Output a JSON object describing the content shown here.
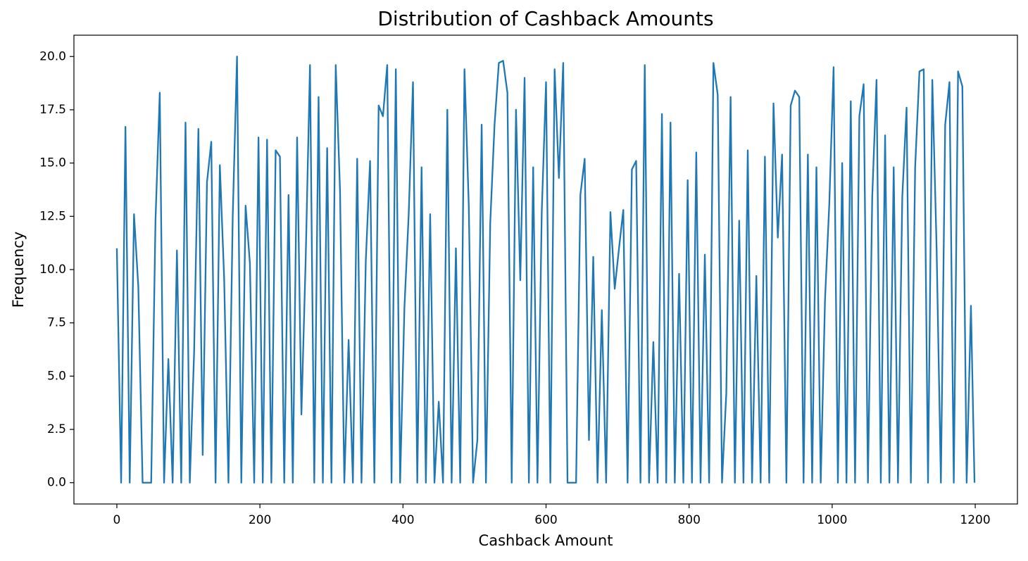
{
  "chart_data": {
    "type": "line",
    "title": "Distribution of Cashback Amounts",
    "x_label": "Cashback Amount",
    "y_label": "Frequency",
    "color": "#1f77b4",
    "xlim": [
      -60,
      1259
    ],
    "ylim": [
      -1,
      21
    ],
    "xticks": [
      0,
      200,
      400,
      600,
      800,
      1000,
      1200
    ],
    "yticks": [
      {
        "value": 0,
        "label": "0.0"
      },
      2.5,
      {
        "value": 5,
        "label": "5.0"
      },
      7.5,
      {
        "value": 10,
        "label": "10.0"
      },
      12.5,
      {
        "value": 15,
        "label": "15.0"
      },
      17.5,
      {
        "value": 20,
        "label": "20.0"
      }
    ],
    "grid": false,
    "x": [
      0,
      6,
      12,
      18,
      24,
      30,
      36,
      42,
      48,
      54,
      60,
      66,
      72,
      78,
      84,
      90,
      96,
      102,
      108,
      114,
      120,
      126,
      132,
      138,
      144,
      150,
      156,
      162,
      168,
      174,
      180,
      186,
      192,
      198,
      204,
      210,
      216,
      222,
      228,
      234,
      240,
      246,
      252,
      258,
      264,
      270,
      276,
      282,
      288,
      294,
      300,
      306,
      312,
      318,
      324,
      330,
      336,
      342,
      348,
      354,
      360,
      366,
      372,
      378,
      384,
      390,
      396,
      402,
      408,
      414,
      420,
      426,
      432,
      438,
      444,
      450,
      456,
      462,
      468,
      474,
      480,
      486,
      492,
      498,
      504,
      510,
      516,
      522,
      528,
      534,
      540,
      546,
      552,
      558,
      564,
      570,
      576,
      582,
      588,
      594,
      600,
      606,
      612,
      618,
      624,
      630,
      636,
      642,
      648,
      654,
      660,
      666,
      672,
      678,
      684,
      690,
      696,
      702,
      708,
      714,
      720,
      726,
      732,
      738,
      744,
      750,
      756,
      762,
      768,
      774,
      780,
      786,
      792,
      798,
      804,
      810,
      816,
      822,
      828,
      834,
      840,
      846,
      852,
      858,
      864,
      870,
      876,
      882,
      888,
      894,
      900,
      906,
      912,
      918,
      924,
      930,
      936,
      942,
      948,
      954,
      960,
      966,
      972,
      978,
      984,
      990,
      996,
      1002,
      1008,
      1014,
      1020,
      1026,
      1032,
      1038,
      1044,
      1050,
      1056,
      1062,
      1068,
      1074,
      1080,
      1086,
      1092,
      1098,
      1104,
      1110,
      1116,
      1122,
      1128,
      1134,
      1140,
      1146,
      1152,
      1158,
      1164,
      1170,
      1176,
      1182,
      1188,
      1194,
      1199
    ],
    "values": [
      11,
      0,
      16.7,
      0,
      12.6,
      9.2,
      0,
      0,
      0,
      12.3,
      18.3,
      0,
      5.8,
      0,
      10.9,
      0,
      16.9,
      0,
      6.1,
      16.6,
      1.3,
      14.1,
      16,
      0,
      14.9,
      9.6,
      0,
      12.5,
      20,
      0,
      13,
      10.3,
      0,
      16.2,
      0,
      16.1,
      0,
      15.6,
      15.3,
      0,
      13.5,
      0,
      16.2,
      3.2,
      10.5,
      19.6,
      0,
      18.1,
      0,
      15.7,
      0,
      19.6,
      13.7,
      0,
      6.7,
      0,
      15.2,
      0,
      10.4,
      15.1,
      0,
      17.7,
      17.2,
      19.6,
      0,
      19.4,
      0,
      8.2,
      12.6,
      18.8,
      0,
      14.8,
      0,
      12.6,
      0,
      3.8,
      0,
      17.5,
      0,
      11,
      0,
      19.4,
      13,
      0,
      2,
      16.8,
      0,
      12.2,
      16.8,
      19.7,
      19.8,
      18.3,
      0,
      17.5,
      9.5,
      19,
      0,
      14.8,
      0,
      12.7,
      18.8,
      0,
      19.4,
      14.3,
      19.7,
      0,
      0,
      0,
      13.5,
      15.2,
      2,
      10.6,
      0,
      8.1,
      0,
      12.7,
      9.1,
      11,
      12.8,
      0,
      14.7,
      15.1,
      0,
      19.6,
      0,
      6.6,
      0,
      17.3,
      0,
      16.9,
      0,
      9.8,
      0,
      14.2,
      0,
      15.5,
      0,
      10.7,
      0,
      19.7,
      18.2,
      0,
      4.2,
      18.1,
      0,
      12.3,
      0,
      15.6,
      0,
      9.7,
      0,
      15.3,
      0,
      17.8,
      11.5,
      15.4,
      0,
      17.7,
      18.4,
      18.1,
      0,
      15.4,
      0,
      14.8,
      0,
      8.6,
      13.1,
      19.5,
      0,
      15,
      0,
      17.9,
      0,
      17.2,
      18.7,
      0,
      13.4,
      18.9,
      0,
      16.3,
      0,
      14.8,
      0,
      13.4,
      17.6,
      0,
      14.8,
      19.3,
      19.4,
      0,
      18.9,
      11,
      0,
      16.8,
      18.8,
      0,
      19.3,
      18.6,
      0,
      8.3,
      0
    ]
  }
}
